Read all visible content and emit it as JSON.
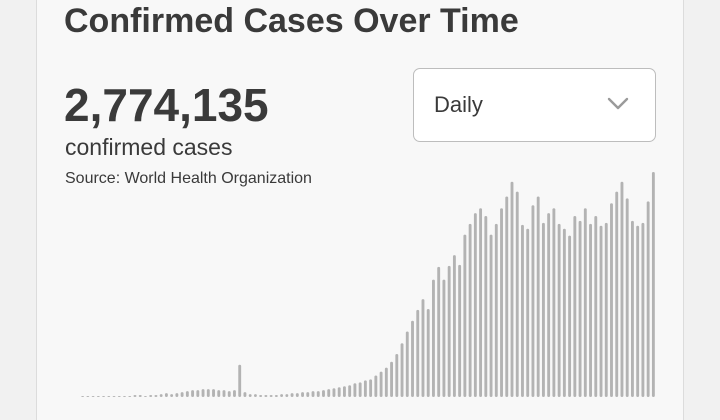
{
  "header": {
    "title": "Confirmed Cases Over Time"
  },
  "summary": {
    "total": "2,774,135",
    "total_label": "confirmed cases",
    "source": "Source:  World Health Organization"
  },
  "dropdown": {
    "selected": "Daily",
    "icon": "chevron-down-icon"
  },
  "colors": {
    "bar": "#b3b3b3",
    "text": "#3a3a3a",
    "background": "#f8f8f8"
  },
  "chart_data": {
    "type": "bar",
    "title": "",
    "xlabel": "",
    "ylabel": "",
    "grid": false,
    "values": [
      0,
      0,
      0,
      1,
      0,
      0,
      0,
      1,
      1,
      1,
      2,
      2,
      1,
      2,
      2,
      3,
      4,
      3,
      4,
      5,
      6,
      7,
      7,
      8,
      8,
      8,
      7,
      7,
      6,
      7,
      33,
      5,
      3,
      3,
      2,
      2,
      2,
      2,
      3,
      3,
      4,
      4,
      5,
      5,
      6,
      6,
      7,
      8,
      9,
      10,
      11,
      12,
      14,
      15,
      17,
      18,
      22,
      26,
      30,
      36,
      44,
      55,
      67,
      78,
      89,
      100,
      90,
      120,
      133,
      120,
      134,
      145,
      135,
      166,
      177,
      188,
      193,
      185,
      166,
      177,
      193,
      205,
      220,
      210,
      176,
      172,
      196,
      205,
      178,
      188,
      193,
      177,
      172,
      165,
      185,
      180,
      193,
      177,
      185,
      175,
      178,
      198,
      210,
      220,
      203,
      180,
      175,
      178,
      200,
      230
    ]
  }
}
